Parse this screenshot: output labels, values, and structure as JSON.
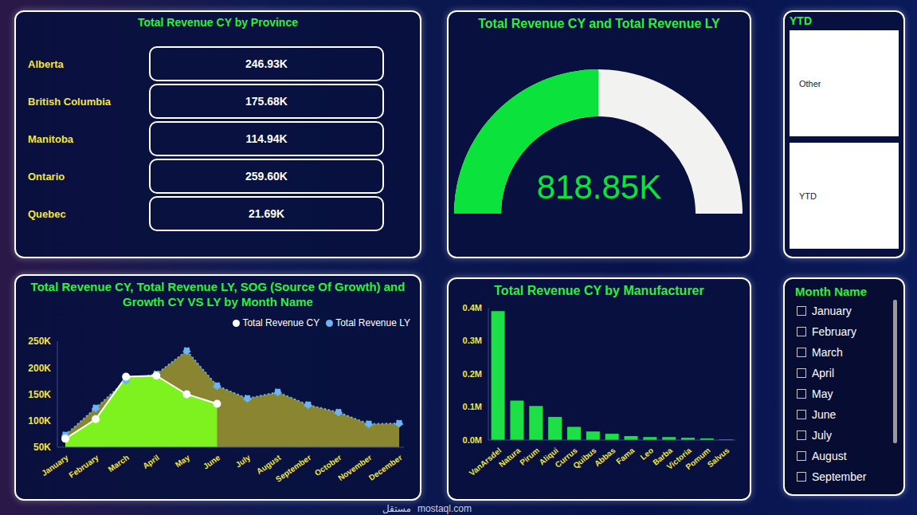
{
  "chart_data": [
    {
      "type": "card_list",
      "title": "Total Revenue CY by Province",
      "categories": [
        "Alberta",
        "British Columbia",
        "Manitoba",
        "Ontario",
        "Quebec"
      ],
      "values": [
        246930,
        175680,
        114940,
        259600,
        21690
      ],
      "value_labels": [
        "246.93K",
        "175.68K",
        "114.94K",
        "259.60K",
        "21.69K"
      ]
    },
    {
      "type": "gauge",
      "title": "Total Revenue CY and Total Revenue LY",
      "values": [
        818850
      ],
      "value_labels": [
        "818.85K"
      ],
      "ylim": [
        0,
        1637700
      ],
      "color": "#0be33c",
      "tick_labels": false
    },
    {
      "type": "area",
      "title": "Total Revenue CY, Total Revenue LY, SOG (Source Of Growth) and Growth CY VS LY by Month Name",
      "categories": [
        "January",
        "February",
        "March",
        "April",
        "May",
        "June",
        "July",
        "August",
        "September",
        "October",
        "November",
        "December"
      ],
      "series": [
        {
          "name": "Total Revenue CY",
          "color": "#ffffff",
          "marker": "circle",
          "line_style": "solid",
          "values": [
            66000,
            103000,
            183000,
            185000,
            150000,
            132000,
            null,
            null,
            null,
            null,
            null,
            null
          ]
        },
        {
          "name": "Total Revenue LY",
          "color": "#6cb4f2",
          "marker": "circle",
          "line_style": "dotted",
          "values": [
            73000,
            124000,
            176000,
            188000,
            232000,
            166000,
            142000,
            154000,
            130000,
            116000,
            94000,
            95000
          ]
        }
      ],
      "ylim": [
        50000,
        250000
      ],
      "yticks": [
        {
          "value": 50000,
          "label": "50K"
        },
        {
          "value": 100000,
          "label": "100K"
        },
        {
          "value": 150000,
          "label": "150K"
        },
        {
          "value": 200000,
          "label": "200K"
        },
        {
          "value": 250000,
          "label": "250K"
        }
      ],
      "legend": "top-right",
      "grid": false
    },
    {
      "type": "bar",
      "title": "Total Revenue CY by Manufacturer",
      "categories": [
        "VanArsdel",
        "Natura",
        "Pirum",
        "Aliqui",
        "Currus",
        "Quibus",
        "Abbas",
        "Fama",
        "Leo",
        "Barba",
        "Victoria",
        "Pomum",
        "Salvus"
      ],
      "values": [
        390000,
        119000,
        103000,
        70000,
        40000,
        26000,
        19000,
        12000,
        9000,
        9000,
        7000,
        5000,
        2000
      ],
      "color": "#1de046",
      "ylim": [
        0,
        400000
      ],
      "yticks": [
        {
          "value": 0,
          "label": "0.0M"
        },
        {
          "value": 100000,
          "label": "0.1M"
        },
        {
          "value": 200000,
          "label": "0.2M"
        },
        {
          "value": 300000,
          "label": "0.3M"
        },
        {
          "value": 400000,
          "label": "0.4M"
        }
      ],
      "grid": false
    }
  ],
  "ytd_slicer": {
    "title": "YTD",
    "items": [
      "Other",
      "YTD"
    ]
  },
  "month_slicer": {
    "title": "Month Name",
    "items": [
      "January",
      "February",
      "March",
      "April",
      "May",
      "June",
      "July",
      "August",
      "September"
    ]
  },
  "watermark": {
    "arabic": "مستقل",
    "latin": "mostaql.com"
  }
}
